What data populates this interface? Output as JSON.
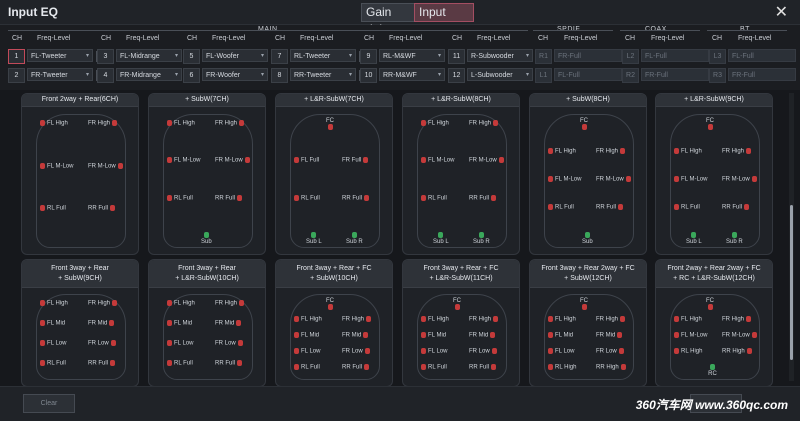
{
  "window": {
    "title": "Input EQ",
    "close_glyph": "✕"
  },
  "tabs": [
    {
      "label": "Gain delay"
    },
    {
      "label": "Input type"
    }
  ],
  "groups": {
    "main": "MAIN",
    "spdif": "SPDIF",
    "coax": "COAX",
    "bt": "BT"
  },
  "headers": {
    "ch": "CH",
    "freq": "Freq-Level"
  },
  "channels": [
    {
      "num": "1",
      "label": "FL-Tweeter"
    },
    {
      "num": "2",
      "label": "FR-Tweeter"
    },
    {
      "num": "3",
      "label": "FL-Midrange"
    },
    {
      "num": "4",
      "label": "FR-Midrange"
    },
    {
      "num": "5",
      "label": "FL-Woofer"
    },
    {
      "num": "6",
      "label": "FR-Woofer"
    },
    {
      "num": "7",
      "label": "RL-Tweeter"
    },
    {
      "num": "8",
      "label": "RR-Tweeter"
    },
    {
      "num": "9",
      "label": "RL-M&WF"
    },
    {
      "num": "10",
      "label": "RR-M&WF"
    },
    {
      "num": "11",
      "label": "R-Subwooder"
    },
    {
      "num": "12",
      "label": "L-Subwooder"
    }
  ],
  "aux": [
    {
      "num": "R1",
      "label": "FR-Full"
    },
    {
      "num": "L1",
      "label": "FL-Full"
    },
    {
      "num": "L2",
      "label": "FL-Full"
    },
    {
      "num": "R2",
      "label": "FR-Full"
    },
    {
      "num": "L3",
      "label": "FL-Full"
    },
    {
      "num": "R3",
      "label": "FR-Full"
    }
  ],
  "switch_glyph": "⇅",
  "caret": "▾",
  "cards_row1": [
    {
      "title1": "Front 2way + Rear(6CH)",
      "title2": "",
      "spk": [
        [
          "FL High",
          "FR High"
        ],
        [
          "FL M-Low",
          "FR M-Low"
        ],
        [
          "RL Full",
          "RR Full"
        ]
      ],
      "extra": []
    },
    {
      "title1": "+ SubW(7CH)",
      "title2": "",
      "spk": [
        [
          "FL High",
          "FR High"
        ],
        [
          "FL M-Low",
          "FR M-Low"
        ],
        [
          "RL Full",
          "RR Full"
        ]
      ],
      "extra": [
        "Sub"
      ]
    },
    {
      "title1": "+ L&R-SubW(7CH)",
      "title2": "",
      "spk": [
        [
          "FC",
          ""
        ],
        [
          "FL Full",
          "FR Full"
        ],
        [
          "RL Full",
          "RR Full"
        ]
      ],
      "extra": [
        "Sub L",
        "Sub R"
      ]
    },
    {
      "title1": "+ L&R-SubW(8CH)",
      "title2": "",
      "spk": [
        [
          "FL High",
          "FR High"
        ],
        [
          "FL M-Low",
          "FR M-Low"
        ],
        [
          "RL Full",
          "RR Full"
        ]
      ],
      "extra": [
        "Sub L",
        "Sub R"
      ]
    },
    {
      "title1": "+ SubW(8CH)",
      "title2": "",
      "spk": [
        [
          "FC",
          ""
        ],
        [
          "FL High",
          "FR High"
        ],
        [
          "FL M-Low",
          "FR M-Low"
        ],
        [
          "RL Full",
          "RR Full"
        ]
      ],
      "extra": [
        "Sub"
      ]
    },
    {
      "title1": "+ L&R-SubW(9CH)",
      "title2": "",
      "spk": [
        [
          "FC",
          ""
        ],
        [
          "FL High",
          "FR High"
        ],
        [
          "FL M-Low",
          "FR M-Low"
        ],
        [
          "RL Full",
          "RR Full"
        ]
      ],
      "extra": [
        "Sub L",
        "Sub R"
      ]
    }
  ],
  "cards_row2": [
    {
      "title1": "Front 3way + Rear",
      "title2": "+ SubW(9CH)",
      "spk": [
        [
          "FL High",
          "FR High"
        ],
        [
          "FL Mid",
          "FR Mid"
        ],
        [
          "FL Low",
          "FR Low"
        ],
        [
          "RL Full",
          "RR Full"
        ]
      ],
      "extra": []
    },
    {
      "title1": "Front 3way + Rear",
      "title2": "+ L&R-SubW(10CH)",
      "spk": [
        [
          "FL High",
          "FR High"
        ],
        [
          "FL Mid",
          "FR Mid"
        ],
        [
          "FL Low",
          "FR Low"
        ],
        [
          "RL Full",
          "RR Full"
        ]
      ],
      "extra": []
    },
    {
      "title1": "Front 3way + Rear + FC",
      "title2": "+ SubW(10CH)",
      "spk": [
        [
          "FC",
          ""
        ],
        [
          "FL High",
          "FR High"
        ],
        [
          "FL Mid",
          "FR Mid"
        ],
        [
          "FL Low",
          "FR Low"
        ],
        [
          "RL Full",
          "RR Full"
        ]
      ],
      "extra": []
    },
    {
      "title1": "Front 3way + Rear + FC",
      "title2": "+ L&R-SubW(11CH)",
      "spk": [
        [
          "FC",
          ""
        ],
        [
          "FL High",
          "FR High"
        ],
        [
          "FL Mid",
          "FR Mid"
        ],
        [
          "FL Low",
          "FR Low"
        ],
        [
          "RL Full",
          "RR Full"
        ]
      ],
      "extra": []
    },
    {
      "title1": "Front 3way + Rear 2way + FC",
      "title2": "+ SubW(12CH)",
      "spk": [
        [
          "FC",
          ""
        ],
        [
          "FL High",
          "FR High"
        ],
        [
          "FL Mid",
          "FR Mid"
        ],
        [
          "FL Low",
          "FR Low"
        ],
        [
          "RL High",
          "RR High"
        ]
      ],
      "extra": []
    },
    {
      "title1": "Front 2way + Rear 2way + FC",
      "title2": "+ RC + L&R-SubW(12CH)",
      "spk": [
        [
          "FC",
          ""
        ],
        [
          "FL High",
          "FR High"
        ],
        [
          "FL M-Low",
          "FR M-Low"
        ],
        [
          "RL High",
          "RR High"
        ]
      ],
      "extra": [
        "RC"
      ]
    }
  ],
  "footer": {
    "clear": "Clear",
    "right_btn": "",
    "watermark": "360汽车网 www.360qc.com"
  }
}
